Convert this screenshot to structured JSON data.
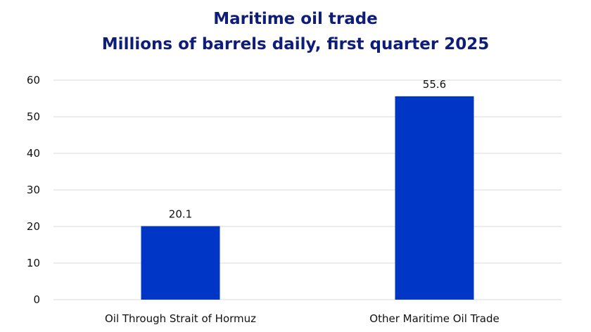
{
  "title": "Maritime oil trade",
  "subtitle": "Millions of barrels daily, first quarter 2025",
  "colors": {
    "bar": "#0036c6",
    "title": "#0e1c7a",
    "grid": "#e0e0e0"
  },
  "chart_data": {
    "type": "bar",
    "title": "Maritime oil trade",
    "subtitle": "Millions of barrels daily, first quarter 2025",
    "categories": [
      "Oil Through Strait of Hormuz",
      "Other Maritime Oil Trade"
    ],
    "values": [
      20.1,
      55.6
    ],
    "data_labels": [
      "20.1",
      "55.6"
    ],
    "xlabel": "",
    "ylabel": "",
    "ylim": [
      0,
      60
    ],
    "yticks": [
      0,
      10,
      20,
      30,
      40,
      50,
      60
    ],
    "grid": true,
    "legend": null
  }
}
